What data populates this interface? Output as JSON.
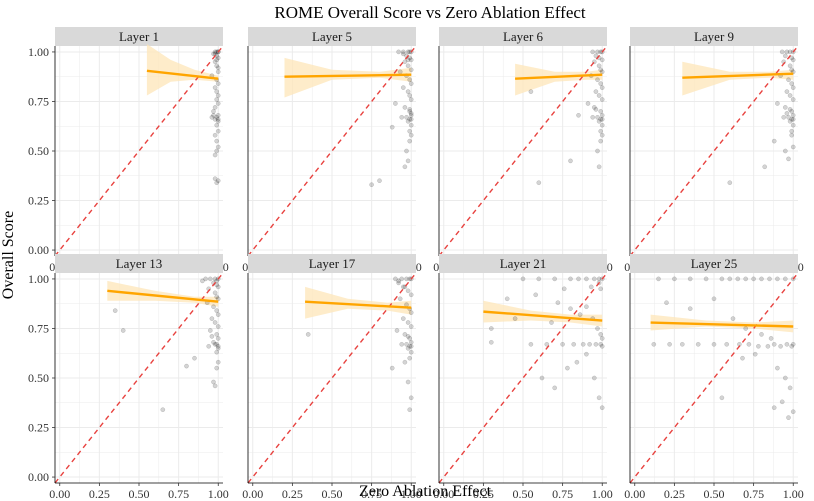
{
  "chart_data": {
    "type": "scatter",
    "title": "ROME Overall Score vs Zero Ablation Effect",
    "xlabel": "Zero Ablation Effect",
    "ylabel": "Overall Score",
    "xlim": [
      0,
      1
    ],
    "ylim": [
      0,
      1
    ],
    "xticks": [
      "0.00",
      "0.25",
      "0.50",
      "0.75",
      "1.00"
    ],
    "yticks": [
      "0.00",
      "0.25",
      "0.50",
      "0.75",
      "1.00"
    ],
    "reference_line": "y = x",
    "colors": {
      "points": "#000000",
      "fit_line": "#FFA500",
      "confidence_band": "#FDE5B8",
      "reference_line": "#E8423F",
      "strip_bg": "#D9D9D9",
      "grid": "#EBEBEB"
    },
    "panels": [
      {
        "label": "Layer 1",
        "fit": {
          "x": [
            0.55,
            1.0
          ],
          "y": [
            0.905,
            0.865
          ]
        },
        "band": {
          "x": [
            0.55,
            0.7,
            0.85,
            1.0
          ],
          "upper": [
            1.04,
            0.96,
            0.91,
            0.88
          ],
          "lower": [
            0.78,
            0.85,
            0.86,
            0.85
          ]
        },
        "points_x": [
          0.98,
          0.99,
          1.0,
          0.97,
          0.99,
          1.0,
          0.98,
          0.99,
          1.0,
          0.96,
          0.99,
          1.0,
          0.98,
          0.99,
          1.0,
          0.99,
          1.0,
          0.98,
          0.97,
          1.0,
          0.99,
          1.0,
          0.98,
          0.96,
          1.0,
          0.99,
          1.0,
          0.98,
          0.99,
          1.0,
          0.99,
          0.98,
          1.0,
          0.99,
          0.98,
          0.97,
          1.0,
          0.99,
          0.98,
          1.0
        ],
        "points_y": [
          1.0,
          1.0,
          1.0,
          0.99,
          0.98,
          0.97,
          0.95,
          0.93,
          0.9,
          0.88,
          0.86,
          0.84,
          0.82,
          0.8,
          0.78,
          0.76,
          0.74,
          0.72,
          0.7,
          0.68,
          0.67,
          0.66,
          0.66,
          0.67,
          0.65,
          0.63,
          0.6,
          0.58,
          0.55,
          0.52,
          0.5,
          0.48,
          0.35,
          0.34,
          0.36,
          0.68,
          0.92,
          0.96,
          0.99,
          1.0
        ]
      },
      {
        "label": "Layer 5",
        "fit": {
          "x": [
            0.2,
            1.0
          ],
          "y": [
            0.875,
            0.885
          ]
        },
        "band": {
          "x": [
            0.2,
            0.5,
            0.8,
            1.0
          ],
          "upper": [
            0.97,
            0.91,
            0.9,
            0.92
          ],
          "lower": [
            0.77,
            0.86,
            0.87,
            0.85
          ]
        },
        "points_x": [
          0.92,
          0.95,
          0.98,
          0.99,
          1.0,
          0.97,
          0.99,
          1.0,
          0.96,
          0.98,
          1.0,
          0.93,
          0.97,
          0.99,
          1.0,
          0.95,
          0.98,
          0.99,
          1.0,
          0.9,
          0.96,
          0.99,
          1.0,
          0.97,
          0.99,
          1.0,
          0.94,
          0.98,
          1.0,
          0.99,
          0.88,
          0.75,
          0.8,
          0.97,
          0.99,
          1.0,
          0.98,
          0.96,
          0.99,
          1.0,
          0.95,
          0.98
        ],
        "points_y": [
          1.0,
          1.0,
          1.0,
          1.0,
          1.0,
          0.98,
          0.97,
          0.96,
          0.95,
          0.93,
          0.91,
          0.9,
          0.88,
          0.86,
          0.84,
          0.82,
          0.8,
          0.78,
          0.76,
          0.74,
          0.72,
          0.7,
          0.68,
          0.67,
          0.66,
          0.66,
          0.67,
          0.65,
          0.63,
          0.6,
          0.62,
          0.33,
          0.35,
          0.5,
          0.55,
          0.58,
          0.45,
          0.42,
          0.71,
          0.69,
          0.99,
          0.96
        ]
      },
      {
        "label": "Layer 6",
        "fit": {
          "x": [
            0.45,
            1.0
          ],
          "y": [
            0.865,
            0.885
          ]
        },
        "band": {
          "x": [
            0.45,
            0.7,
            0.9,
            1.0
          ],
          "upper": [
            0.94,
            0.9,
            0.9,
            0.91
          ],
          "lower": [
            0.78,
            0.85,
            0.86,
            0.86
          ]
        },
        "points_x": [
          0.94,
          0.97,
          0.99,
          1.0,
          0.96,
          0.98,
          1.0,
          0.95,
          0.98,
          0.99,
          1.0,
          0.93,
          0.97,
          0.99,
          1.0,
          0.96,
          0.98,
          1.0,
          0.91,
          0.95,
          0.99,
          1.0,
          0.97,
          0.99,
          1.0,
          0.94,
          0.98,
          1.0,
          0.99,
          0.85,
          0.6,
          0.55,
          0.8,
          0.97,
          0.99,
          1.0,
          0.98,
          0.96
        ],
        "points_y": [
          1.0,
          1.0,
          1.0,
          1.0,
          0.98,
          0.97,
          0.96,
          0.95,
          0.93,
          0.91,
          0.9,
          0.88,
          0.86,
          0.84,
          0.82,
          0.8,
          0.78,
          0.76,
          0.74,
          0.72,
          0.7,
          0.68,
          0.67,
          0.66,
          0.66,
          0.67,
          0.65,
          0.63,
          0.6,
          0.68,
          0.34,
          0.8,
          0.45,
          0.5,
          0.55,
          0.58,
          0.42,
          0.71
        ]
      },
      {
        "label": "Layer 9",
        "fit": {
          "x": [
            0.3,
            1.0
          ],
          "y": [
            0.87,
            0.89
          ]
        },
        "band": {
          "x": [
            0.3,
            0.6,
            0.85,
            1.0
          ],
          "upper": [
            0.95,
            0.9,
            0.9,
            0.91
          ],
          "lower": [
            0.78,
            0.86,
            0.87,
            0.86
          ]
        },
        "points_x": [
          0.93,
          0.96,
          0.98,
          1.0,
          0.95,
          0.99,
          1.0,
          0.94,
          0.98,
          0.99,
          1.0,
          0.92,
          0.97,
          0.99,
          1.0,
          0.96,
          0.98,
          1.0,
          0.9,
          0.95,
          0.99,
          1.0,
          0.97,
          0.99,
          1.0,
          0.94,
          0.98,
          1.0,
          0.99,
          0.88,
          0.82,
          0.6,
          0.95,
          0.97,
          0.99,
          1.0,
          0.98,
          0.96
        ],
        "points_y": [
          1.0,
          1.0,
          1.0,
          1.0,
          0.98,
          0.97,
          0.96,
          0.95,
          0.93,
          0.91,
          0.9,
          0.88,
          0.86,
          0.84,
          0.82,
          0.8,
          0.78,
          0.76,
          0.74,
          0.72,
          0.7,
          0.68,
          0.67,
          0.66,
          0.66,
          0.67,
          0.65,
          0.63,
          0.6,
          0.55,
          0.42,
          0.34,
          0.5,
          0.46,
          0.58,
          0.52,
          0.71,
          0.69
        ]
      },
      {
        "label": "Layer 13",
        "fit": {
          "x": [
            0.3,
            1.0
          ],
          "y": [
            0.94,
            0.885
          ]
        },
        "band": {
          "x": [
            0.3,
            0.6,
            0.85,
            1.0
          ],
          "upper": [
            0.99,
            0.94,
            0.91,
            0.91
          ],
          "lower": [
            0.89,
            0.89,
            0.88,
            0.86
          ]
        },
        "points_x": [
          0.92,
          0.95,
          0.98,
          1.0,
          0.9,
          0.97,
          0.99,
          1.0,
          0.94,
          0.98,
          0.99,
          1.0,
          0.93,
          0.97,
          0.99,
          1.0,
          0.96,
          0.98,
          1.0,
          0.95,
          0.99,
          1.0,
          0.97,
          0.99,
          1.0,
          0.94,
          0.98,
          1.0,
          0.99,
          0.85,
          0.8,
          0.35,
          0.4,
          0.65,
          0.97,
          0.99,
          1.0,
          0.98,
          0.96,
          0.99
        ],
        "points_y": [
          1.0,
          1.0,
          1.0,
          1.0,
          0.99,
          0.98,
          0.97,
          0.96,
          0.95,
          0.93,
          0.91,
          0.9,
          0.88,
          0.86,
          0.84,
          0.82,
          0.8,
          0.78,
          0.76,
          0.74,
          0.72,
          0.7,
          0.68,
          0.67,
          0.66,
          0.66,
          0.67,
          0.65,
          0.63,
          0.6,
          0.56,
          0.84,
          0.74,
          0.34,
          0.48,
          0.55,
          0.58,
          0.46,
          0.71,
          0.99
        ]
      },
      {
        "label": "Layer 17",
        "fit": {
          "x": [
            0.33,
            1.0
          ],
          "y": [
            0.885,
            0.855
          ]
        },
        "band": {
          "x": [
            0.33,
            0.6,
            0.85,
            1.0
          ],
          "upper": [
            0.96,
            0.9,
            0.88,
            0.89
          ],
          "lower": [
            0.8,
            0.85,
            0.84,
            0.82
          ]
        },
        "points_x": [
          0.9,
          0.94,
          0.97,
          0.99,
          1.0,
          0.92,
          0.96,
          0.98,
          1.0,
          0.93,
          0.97,
          0.99,
          1.0,
          0.95,
          0.98,
          1.0,
          0.91,
          0.96,
          0.99,
          1.0,
          0.97,
          0.99,
          1.0,
          0.94,
          0.98,
          1.0,
          0.99,
          0.88,
          0.35,
          0.98,
          0.99,
          1.0,
          0.96,
          0.98,
          0.92,
          0.95
        ],
        "points_y": [
          1.0,
          1.0,
          1.0,
          1.0,
          1.0,
          0.98,
          0.96,
          0.94,
          0.92,
          0.9,
          0.87,
          0.85,
          0.83,
          0.8,
          0.78,
          0.76,
          0.74,
          0.72,
          0.7,
          0.68,
          0.67,
          0.66,
          0.66,
          0.67,
          0.65,
          0.63,
          0.6,
          0.55,
          0.72,
          0.48,
          0.34,
          0.4,
          0.58,
          0.71,
          0.99,
          0.96
        ]
      },
      {
        "label": "Layer 21",
        "fit": {
          "x": [
            0.25,
            1.0
          ],
          "y": [
            0.835,
            0.79
          ]
        },
        "band": {
          "x": [
            0.25,
            0.55,
            0.8,
            1.0
          ],
          "upper": [
            0.89,
            0.84,
            0.82,
            0.82
          ],
          "lower": [
            0.78,
            0.79,
            0.78,
            0.76
          ]
        },
        "points_x": [
          0.5,
          0.6,
          0.7,
          0.8,
          0.85,
          0.9,
          0.95,
          0.98,
          1.0,
          0.55,
          0.65,
          0.75,
          0.82,
          0.88,
          0.92,
          0.96,
          0.99,
          1.0,
          0.4,
          0.58,
          0.72,
          0.8,
          0.86,
          0.9,
          0.94,
          0.97,
          0.99,
          1.0,
          0.62,
          0.7,
          0.78,
          0.84,
          0.9,
          0.95,
          0.98,
          1.0,
          0.3,
          0.45,
          0.68,
          0.76,
          0.93,
          0.98,
          0.99,
          0.3
        ],
        "points_y": [
          1.0,
          1.0,
          1.0,
          1.0,
          1.0,
          1.0,
          1.0,
          1.0,
          1.0,
          0.67,
          0.67,
          0.67,
          0.67,
          0.67,
          0.67,
          0.67,
          0.67,
          0.66,
          0.9,
          0.92,
          0.88,
          0.85,
          0.82,
          0.86,
          0.8,
          0.75,
          0.72,
          0.7,
          0.5,
          0.45,
          0.55,
          0.58,
          0.62,
          0.5,
          0.4,
          0.35,
          0.75,
          0.8,
          0.78,
          0.95,
          0.96,
          0.98,
          0.95,
          0.68
        ]
      },
      {
        "label": "Layer 25",
        "fit": {
          "x": [
            0.1,
            1.0
          ],
          "y": [
            0.78,
            0.76
          ]
        },
        "band": {
          "x": [
            0.1,
            0.45,
            0.75,
            1.0
          ],
          "upper": [
            0.82,
            0.79,
            0.78,
            0.79
          ],
          "lower": [
            0.74,
            0.76,
            0.75,
            0.73
          ]
        },
        "points_x": [
          0.15,
          0.25,
          0.35,
          0.45,
          0.55,
          0.6,
          0.65,
          0.7,
          0.75,
          0.8,
          0.85,
          0.9,
          0.95,
          1.0,
          0.12,
          0.22,
          0.3,
          0.4,
          0.5,
          0.58,
          0.66,
          0.72,
          0.78,
          0.84,
          0.88,
          0.92,
          0.96,
          0.99,
          1.0,
          0.2,
          0.35,
          0.5,
          0.62,
          0.7,
          0.8,
          0.86,
          0.9,
          0.95,
          0.98,
          0.55,
          0.68,
          0.76,
          0.88,
          0.93,
          0.97,
          1.0
        ],
        "points_y": [
          1.0,
          1.0,
          1.0,
          1.0,
          1.0,
          1.0,
          1.0,
          1.0,
          1.0,
          1.0,
          1.0,
          1.0,
          1.0,
          1.0,
          0.67,
          0.67,
          0.67,
          0.67,
          0.67,
          0.67,
          0.67,
          0.67,
          0.66,
          0.66,
          0.67,
          0.66,
          0.67,
          0.66,
          0.67,
          0.88,
          0.85,
          0.9,
          0.8,
          0.75,
          0.72,
          0.7,
          0.55,
          0.5,
          0.45,
          0.4,
          0.6,
          0.62,
          0.35,
          0.38,
          0.3,
          0.33
        ]
      }
    ]
  }
}
